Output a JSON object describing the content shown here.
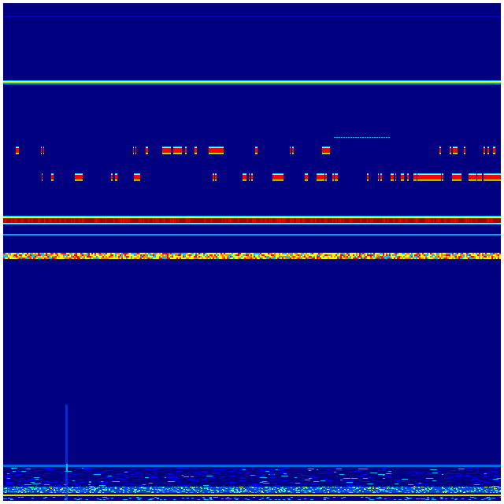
{
  "chart_data": {
    "type": "heatmap",
    "colormap": "jet",
    "background_color": "#000080",
    "colors": {
      "low": "#000080",
      "blue": "#0000ff",
      "cyan": "#00bfff",
      "yellow": "#ffff00",
      "red": "#ff0000",
      "dark_red": "#a00000"
    },
    "title": "",
    "xlabel": "",
    "ylabel": "",
    "grid": false,
    "legend": "none"
  }
}
